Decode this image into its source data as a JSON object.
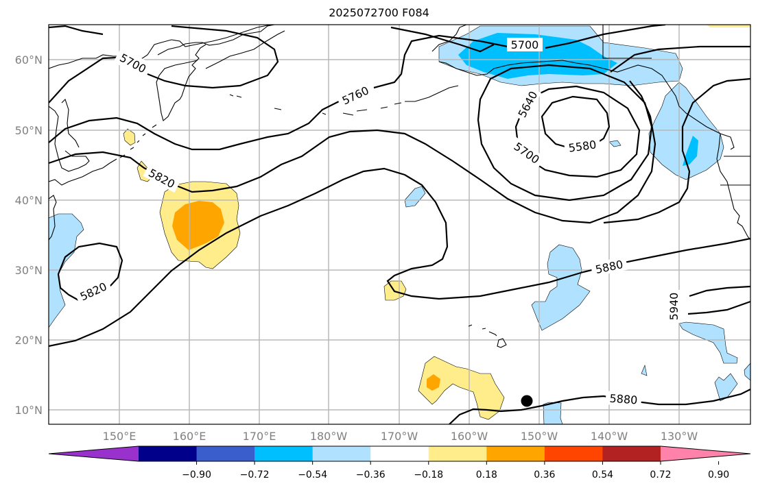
{
  "title": "2025072700 F084",
  "axes": {
    "lat_labels": [
      "60°N",
      "50°N",
      "40°N",
      "30°N",
      "20°N",
      "10°N"
    ],
    "lon_labels": [
      "150°E",
      "160°E",
      "170°E",
      "180°W",
      "170°W",
      "160°W",
      "150°W",
      "140°W",
      "130°W"
    ]
  },
  "contour_labels": {
    "c5700_west": "5700",
    "c5760": "5760",
    "c5700_alaska": "5700",
    "c5640": "5640",
    "c5580": "5580",
    "c5700_south": "5700",
    "c5820_north": "5820",
    "c5820_low": "5820",
    "c5880_mid": "5880",
    "c5880_south": "5880",
    "c5940": "5940"
  },
  "colorbar": {
    "ticks": [
      "−0.90",
      "−0.72",
      "−0.54",
      "−0.36",
      "−0.18",
      "0.18",
      "0.36",
      "0.54",
      "0.72",
      "0.90"
    ],
    "colors": [
      "#9932CC",
      "#00008B",
      "#3A5FCD",
      "#00BFFF",
      "#B0E2FF",
      "#FFFFFF",
      "#FFEC8B",
      "#FFA500",
      "#FF4500",
      "#B22222",
      "#FF82AB"
    ],
    "extend": "both"
  },
  "colors": {
    "neg1": "#B0E2FF",
    "neg2": "#00BFFF",
    "pos1": "#FFEC8B",
    "pos2": "#FFA500",
    "grid": "#B8B8B8",
    "tick_label": "#808080"
  },
  "marker": "station-dot"
}
